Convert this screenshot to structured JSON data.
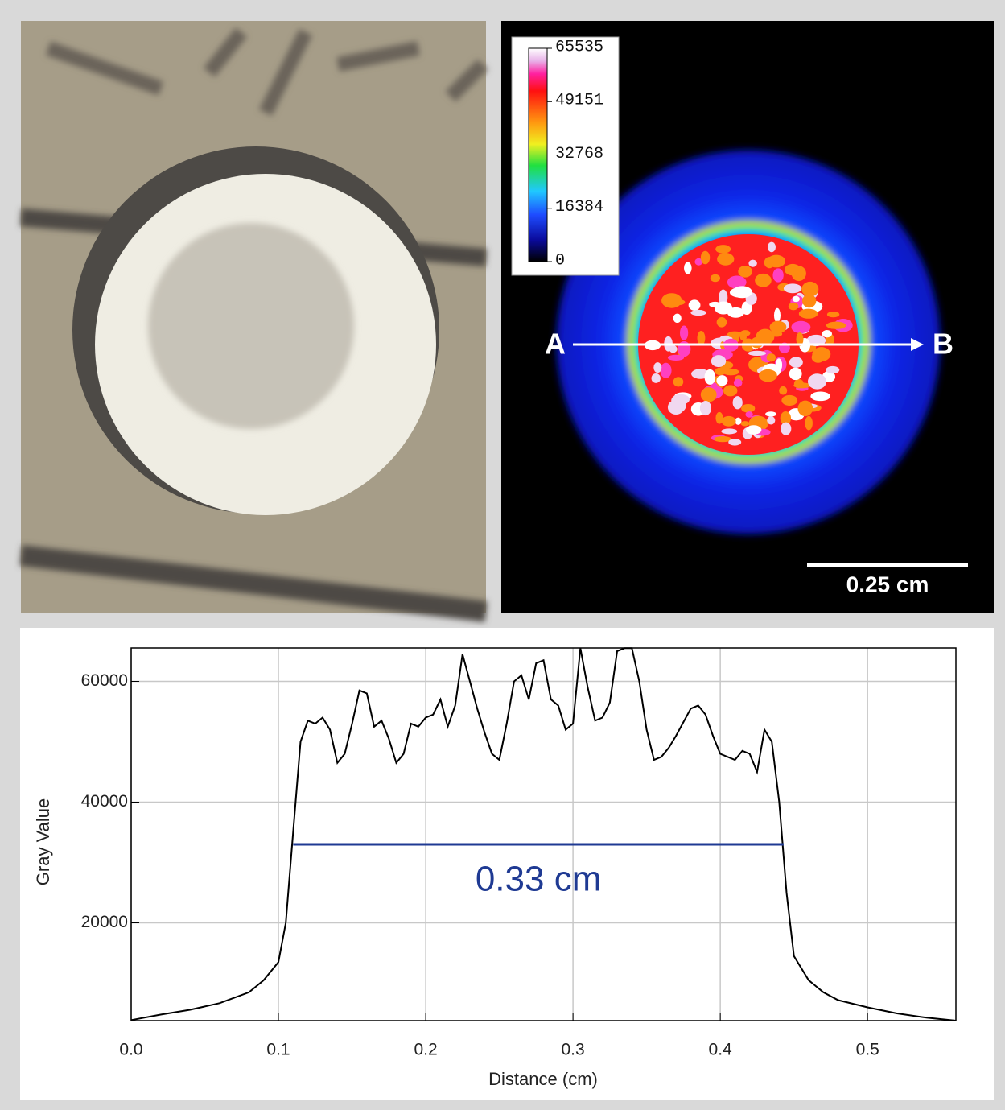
{
  "chart_data": {
    "type": "line",
    "color": "#000000",
    "x_label": "Distance (cm)",
    "y_label": "Gray Value",
    "x": [
      0,
      0.02,
      0.04,
      0.06,
      0.08,
      0.09,
      0.1,
      0.105,
      0.11,
      0.115,
      0.12,
      0.125,
      0.13,
      0.135,
      0.14,
      0.145,
      0.15,
      0.155,
      0.16,
      0.165,
      0.17,
      0.175,
      0.18,
      0.185,
      0.19,
      0.195,
      0.2,
      0.205,
      0.21,
      0.215,
      0.22,
      0.225,
      0.23,
      0.235,
      0.24,
      0.245,
      0.25,
      0.255,
      0.26,
      0.265,
      0.27,
      0.275,
      0.28,
      0.285,
      0.29,
      0.295,
      0.3,
      0.305,
      0.31,
      0.315,
      0.32,
      0.325,
      0.33,
      0.335,
      0.34,
      0.345,
      0.35,
      0.355,
      0.36,
      0.365,
      0.37,
      0.38,
      0.385,
      0.39,
      0.395,
      0.4,
      0.41,
      0.415,
      0.42,
      0.425,
      0.43,
      0.435,
      0.44,
      0.445,
      0.45,
      0.46,
      0.47,
      0.48,
      0.5,
      0.52,
      0.54,
      0.56
    ],
    "values": [
      3900,
      4800,
      5600,
      6700,
      8500,
      10500,
      13500,
      20000,
      35000,
      50000,
      53500,
      53000,
      54000,
      52000,
      46500,
      48000,
      53000,
      58500,
      58000,
      52500,
      53500,
      50500,
      46500,
      48000,
      53000,
      52500,
      54000,
      54500,
      57000,
      52500,
      56000,
      64500,
      60000,
      55500,
      51500,
      48000,
      47000,
      53000,
      60000,
      61000,
      57000,
      63000,
      63500,
      57000,
      56000,
      52000,
      53000,
      65500,
      59000,
      53500,
      54000,
      56500,
      65000,
      65500,
      65500,
      60000,
      52000,
      47000,
      47500,
      49000,
      51000,
      55500,
      56000,
      54500,
      51000,
      48000,
      47000,
      48500,
      48000,
      45000,
      52000,
      50000,
      40000,
      25000,
      14500,
      10500,
      8500,
      7200,
      6000,
      5000,
      4300,
      3800
    ],
    "xlim": [
      0,
      0.56
    ],
    "ylim": [
      3800,
      65535
    ],
    "xticks": [
      {
        "value": 0,
        "label": "0.0"
      },
      0.1,
      0.2,
      0.3,
      0.4,
      0.5
    ],
    "yticks": [
      20000,
      40000,
      60000
    ],
    "grid": true,
    "annotation": {
      "text": "0.33 cm",
      "x": [
        0.11,
        0.443
      ],
      "y": 33000,
      "color": "#1f3a93"
    }
  },
  "image_panel": {
    "colorbar": {
      "clim": [
        0,
        65535
      ],
      "ticks": [
        0,
        16384,
        32768,
        49151,
        65535
      ]
    },
    "point_a": "A",
    "point_b": "B",
    "scale_bar": "0.25 cm"
  }
}
